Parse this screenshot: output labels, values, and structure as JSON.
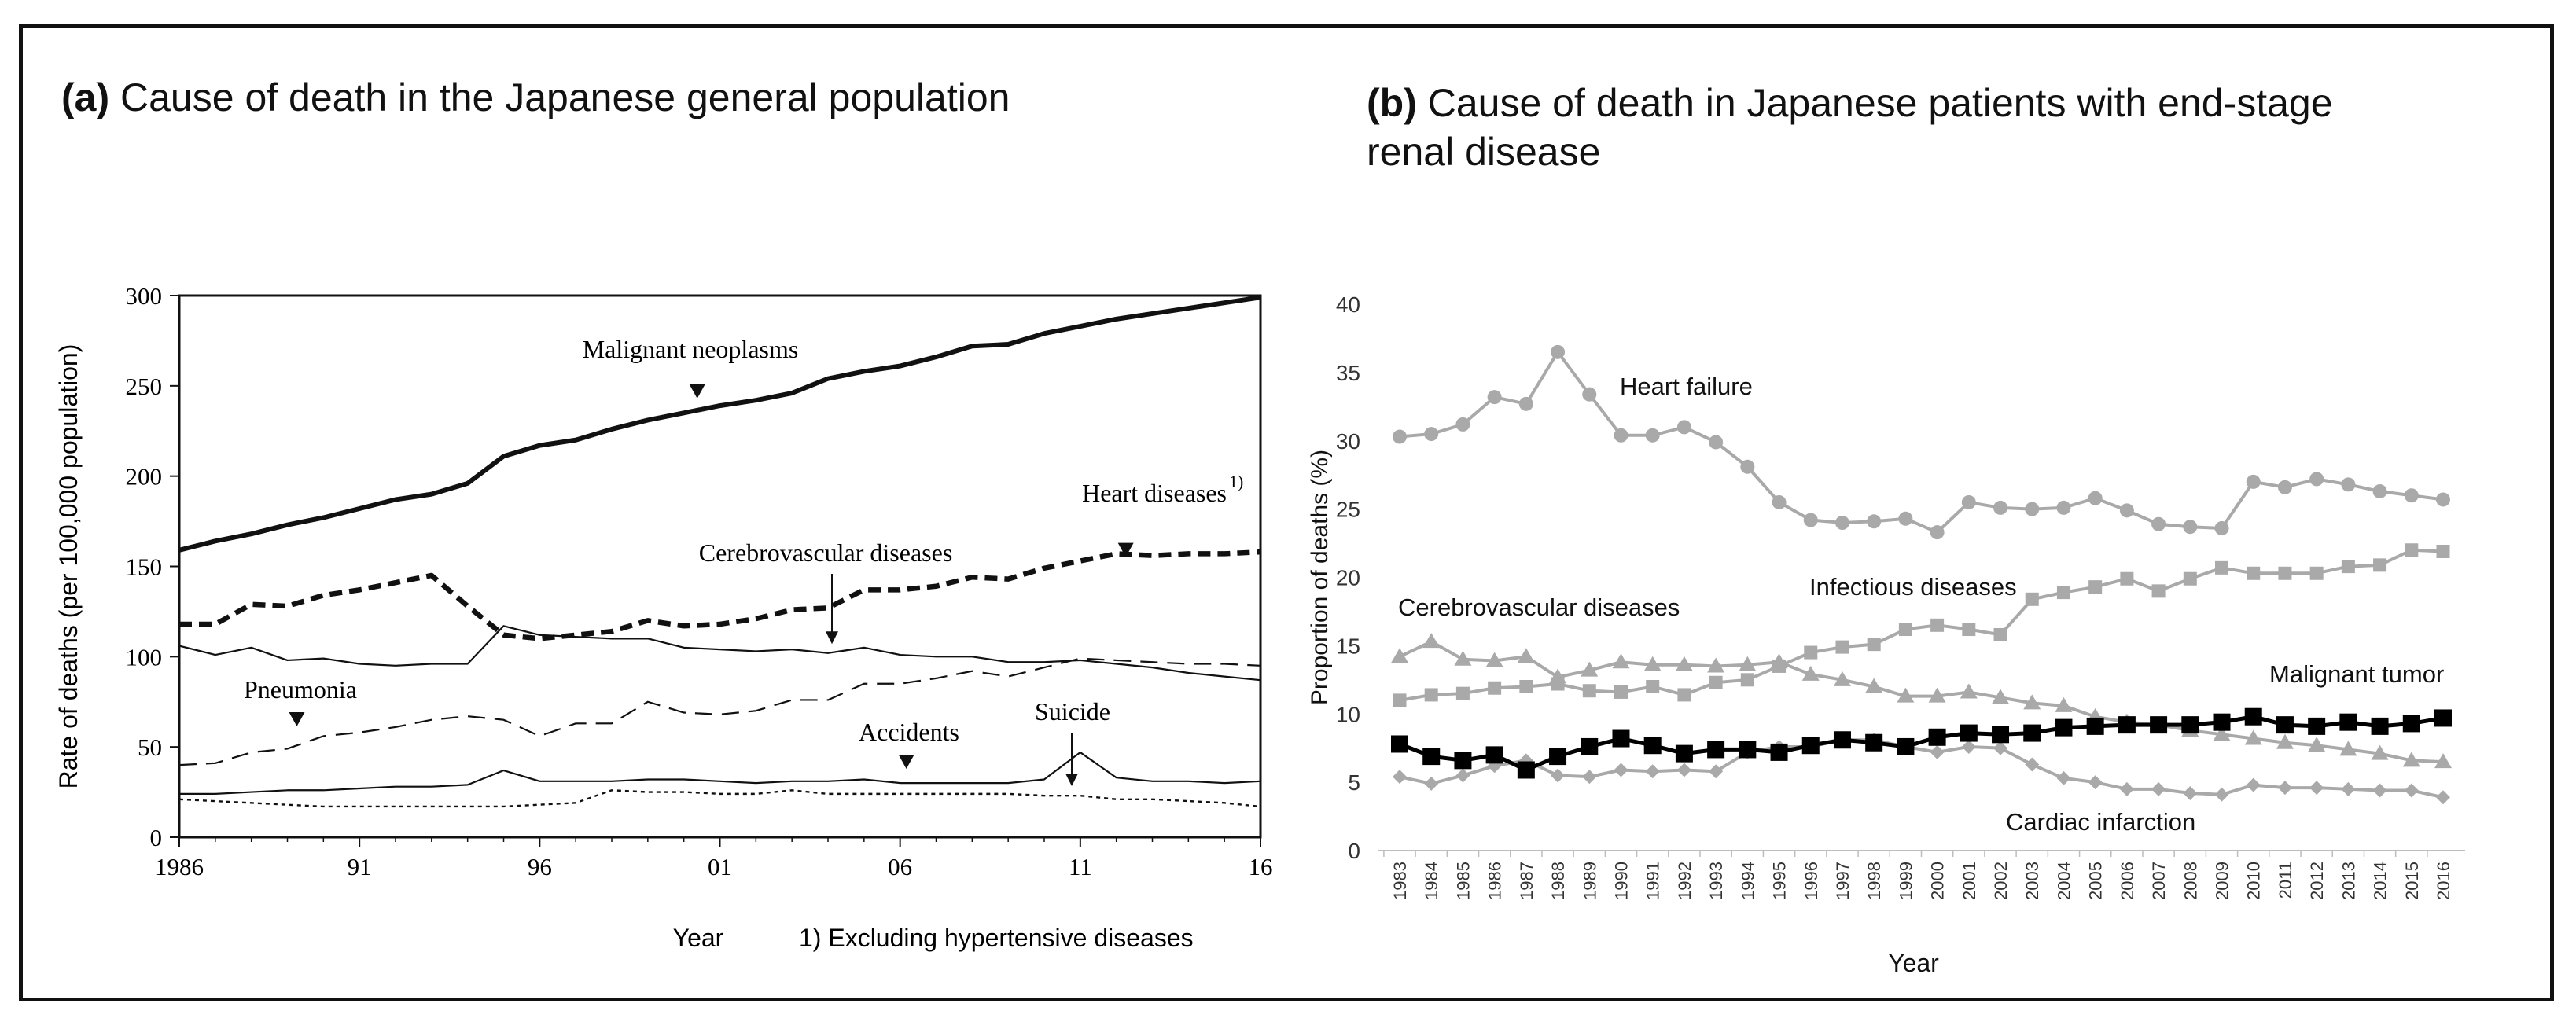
{
  "figure": {
    "panel_a_tag": "(a)",
    "panel_a_title": "Cause of death in the Japanese general population",
    "panel_b_tag": "(b)",
    "panel_b_title_line1": "Cause of death in Japanese patients with end-stage",
    "panel_b_title_line2": "renal disease"
  },
  "chart_data": [
    {
      "type": "line",
      "title": "Cause of death in the Japanese general population",
      "xlabel": "Year",
      "ylabel": "Rate of deaths (per 100,000 population)",
      "footnote": "1) Excluding hypertensive diseases",
      "xlim": [
        1986,
        2016
      ],
      "ylim": [
        0,
        300
      ],
      "x_ticks": [
        1986,
        1991,
        1996,
        2001,
        2006,
        2011,
        2016
      ],
      "x_tick_labels": [
        "1986",
        "91",
        "96",
        "01",
        "06",
        "11",
        "16"
      ],
      "y_ticks": [
        0,
        50,
        100,
        150,
        200,
        250,
        300
      ],
      "x": [
        1986,
        1987,
        1988,
        1989,
        1990,
        1991,
        1992,
        1993,
        1994,
        1995,
        1996,
        1997,
        1998,
        1999,
        2000,
        2001,
        2002,
        2003,
        2004,
        2005,
        2006,
        2007,
        2008,
        2009,
        2010,
        2011,
        2012,
        2013,
        2014,
        2015,
        2016
      ],
      "series": [
        {
          "name": "Malignant neoplasms",
          "style": "thick-solid",
          "values": [
            159,
            164,
            168,
            173,
            177,
            182,
            187,
            190,
            196,
            211,
            217,
            220,
            226,
            231,
            235,
            239,
            242,
            246,
            254,
            258,
            261,
            266,
            272,
            273,
            279,
            283,
            287,
            290,
            293,
            296,
            299
          ]
        },
        {
          "name": "Heart diseases",
          "style": "thick-dash",
          "values": [
            118,
            118,
            129,
            128,
            134,
            137,
            141,
            145,
            128,
            112,
            110,
            112,
            114,
            120,
            117,
            118,
            121,
            126,
            127,
            137,
            137,
            139,
            144,
            143,
            149,
            153,
            157,
            156,
            157,
            157,
            158
          ]
        },
        {
          "name": "Cerebrovascular diseases",
          "style": "thin-solid",
          "values": [
            106,
            101,
            105,
            98,
            99,
            96,
            95,
            96,
            96,
            117,
            112,
            111,
            110,
            110,
            105,
            104,
            103,
            104,
            102,
            105,
            101,
            100,
            100,
            97,
            97,
            98,
            96,
            94,
            91,
            89,
            87
          ]
        },
        {
          "name": "Pneumonia",
          "style": "thin-dash",
          "values": [
            40,
            41,
            47,
            49,
            56,
            58,
            61,
            65,
            67,
            65,
            56,
            63,
            63,
            75,
            69,
            68,
            70,
            76,
            76,
            85,
            85,
            88,
            92,
            89,
            94,
            99,
            98,
            97,
            96,
            96,
            95
          ]
        },
        {
          "name": "Accidents",
          "style": "thin-solid",
          "values": [
            24,
            24,
            25,
            26,
            26,
            27,
            28,
            28,
            29,
            37,
            31,
            31,
            31,
            32,
            32,
            31,
            30,
            31,
            31,
            32,
            30,
            30,
            30,
            30,
            32,
            47,
            33,
            31,
            31,
            30,
            31
          ]
        },
        {
          "name": "Suicide",
          "style": "dotted",
          "values": [
            21,
            20,
            19,
            18,
            17,
            17,
            17,
            17,
            17,
            17,
            18,
            19,
            26,
            25,
            25,
            24,
            24,
            26,
            24,
            24,
            24,
            24,
            24,
            24,
            23,
            23,
            21,
            21,
            20,
            19,
            17
          ]
        }
      ],
      "annotations": [
        {
          "text": "Malignant neoplasms",
          "year": 2000,
          "value": 243
        },
        {
          "text": "Heart diseases",
          "superscript": "1)",
          "year": 2012,
          "value": 163
        },
        {
          "text": "Cerebrovascular diseases",
          "year": 2004,
          "value": 107
        },
        {
          "text": "Pneumonia",
          "year": 1989,
          "value": 63
        },
        {
          "text": "Accidents",
          "year": 2006,
          "value": 36
        },
        {
          "text": "Suicide",
          "year": 2011,
          "value": 28
        }
      ]
    },
    {
      "type": "line",
      "title": "Cause of death in Japanese patients with end-stage renal disease",
      "xlabel": "Year",
      "ylabel": "Proportion of deaths (%)",
      "ylim": [
        0,
        40
      ],
      "y_ticks": [
        0,
        5,
        10,
        15,
        20,
        25,
        30,
        35,
        40
      ],
      "categories": [
        "1983",
        "1984",
        "1985",
        "1986",
        "1987",
        "1988",
        "1989",
        "1990",
        "1991",
        "1992",
        "1993",
        "1994",
        "1995",
        "1996",
        "1997",
        "1998",
        "1999",
        "2000",
        "2001",
        "2002",
        "2003",
        "2004",
        "2005",
        "2006",
        "2007",
        "2008",
        "2009",
        "2010",
        "2011",
        "2012",
        "2013",
        "2014",
        "2015",
        "2016"
      ],
      "series": [
        {
          "name": "Heart failure",
          "marker": "circle",
          "color": "#a9a9a9",
          "values": [
            30.3,
            30.5,
            31.2,
            33.2,
            32.7,
            36.5,
            33.4,
            30.4,
            30.4,
            31.0,
            29.9,
            28.1,
            25.5,
            24.2,
            24.0,
            24.1,
            24.3,
            23.3,
            25.5,
            25.1,
            25.0,
            25.1,
            25.8,
            24.9,
            23.9,
            23.7,
            23.6,
            27.0,
            26.6,
            27.2,
            26.8,
            26.3,
            26.0,
            25.7
          ]
        },
        {
          "name": "Infectious diseases",
          "marker": "square",
          "color": "#a9a9a9",
          "values": [
            11.0,
            11.4,
            11.5,
            11.9,
            12.0,
            12.2,
            11.7,
            11.6,
            12.0,
            11.4,
            12.3,
            12.5,
            13.5,
            14.5,
            14.9,
            15.1,
            16.2,
            16.5,
            16.2,
            15.8,
            18.4,
            18.9,
            19.3,
            19.9,
            19.0,
            19.9,
            20.7,
            20.3,
            20.3,
            20.3,
            20.8,
            20.9,
            22.0,
            21.9
          ]
        },
        {
          "name": "Cerebrovascular diseases",
          "marker": "triangle",
          "color": "#a9a9a9",
          "values": [
            14.2,
            15.3,
            14.0,
            13.9,
            14.2,
            12.7,
            13.2,
            13.8,
            13.6,
            13.6,
            13.5,
            13.6,
            13.8,
            12.9,
            12.5,
            12.0,
            11.3,
            11.3,
            11.6,
            11.2,
            10.8,
            10.6,
            9.8,
            9.4,
            9.2,
            8.8,
            8.5,
            8.2,
            7.9,
            7.7,
            7.4,
            7.1,
            6.6,
            6.5
          ]
        },
        {
          "name": "Malignant tumor",
          "marker": "square",
          "color": "#000000",
          "values": [
            7.8,
            6.9,
            6.6,
            7.0,
            5.9,
            6.9,
            7.6,
            8.2,
            7.7,
            7.1,
            7.4,
            7.4,
            7.2,
            7.7,
            8.1,
            7.9,
            7.6,
            8.3,
            8.6,
            8.5,
            8.6,
            9.0,
            9.1,
            9.2,
            9.2,
            9.2,
            9.4,
            9.8,
            9.2,
            9.1,
            9.4,
            9.1,
            9.3,
            9.7
          ]
        },
        {
          "name": "Cardiac infarction",
          "marker": "diamond",
          "color": "#a9a9a9",
          "values": [
            5.4,
            4.9,
            5.5,
            6.2,
            6.6,
            5.5,
            5.4,
            5.9,
            5.8,
            5.9,
            5.8,
            7.2,
            7.6,
            7.6,
            8.1,
            8.1,
            7.6,
            7.2,
            7.6,
            7.5,
            6.3,
            5.3,
            5.0,
            4.5,
            4.5,
            4.2,
            4.1,
            4.8,
            4.6,
            4.6,
            4.5,
            4.4,
            4.4,
            3.9
          ]
        }
      ],
      "annotations": [
        {
          "text": "Heart failure",
          "position": "above-left"
        },
        {
          "text": "Infectious diseases",
          "position": "center"
        },
        {
          "text": "Cerebrovascular diseases",
          "position": "upper-left"
        },
        {
          "text": "Malignant tumor",
          "position": "right"
        },
        {
          "text": "Cardiac infarction",
          "position": "lower-right"
        }
      ]
    }
  ]
}
